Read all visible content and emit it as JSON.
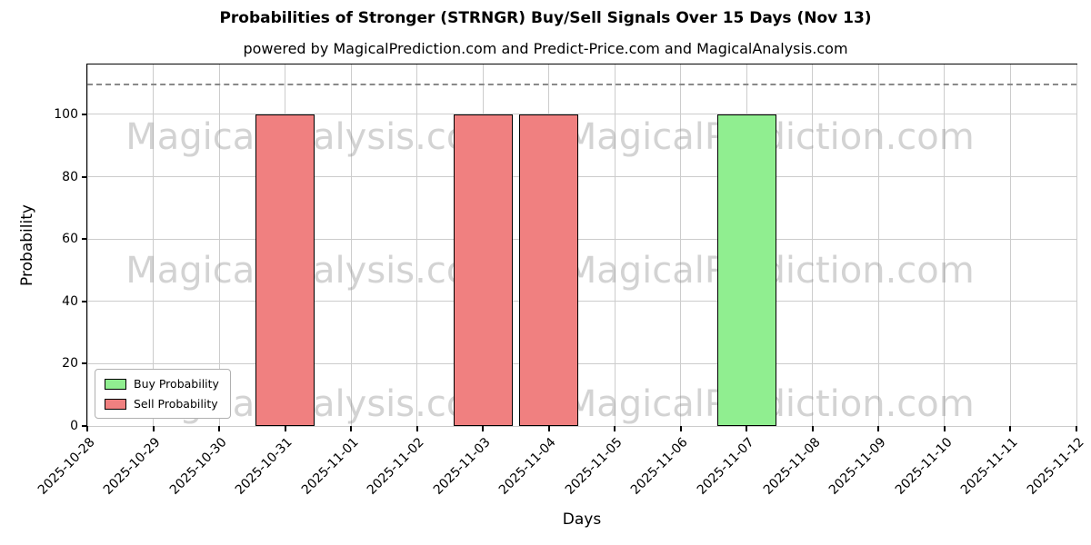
{
  "chart_data": {
    "type": "bar",
    "title": "Probabilities of Stronger (STRNGR) Buy/Sell Signals Over 15 Days (Nov 13)",
    "subtitle": "powered by MagicalPrediction.com and Predict-Price.com and MagicalAnalysis.com",
    "xlabel": "Days",
    "ylabel": "Probability",
    "categories": [
      "2025-10-28",
      "2025-10-29",
      "2025-10-30",
      "2025-10-31",
      "2025-11-01",
      "2025-11-02",
      "2025-11-03",
      "2025-11-04",
      "2025-11-05",
      "2025-11-06",
      "2025-11-07",
      "2025-11-08",
      "2025-11-09",
      "2025-11-10",
      "2025-11-11",
      "2025-11-12"
    ],
    "series": [
      {
        "name": "Buy Probability",
        "color": "#90ee90",
        "values": [
          0,
          0,
          0,
          0,
          0,
          0,
          0,
          0,
          0,
          0,
          100,
          0,
          0,
          0,
          0,
          0
        ]
      },
      {
        "name": "Sell Probability",
        "color": "#f08080",
        "values": [
          0,
          0,
          0,
          100,
          0,
          0,
          100,
          100,
          0,
          0,
          0,
          0,
          0,
          0,
          0,
          0
        ]
      }
    ],
    "yticks": [
      0,
      20,
      40,
      60,
      80,
      100
    ],
    "ylim": [
      0,
      116
    ],
    "threshold_line": 110,
    "grid": true,
    "legend_position": "lower left",
    "bar_edge_color": "#000000",
    "grid_color": "#cccccc",
    "threshold_color": "#8a8a8a",
    "watermarks": [
      "MagicalAnalysis.com",
      "MagicalPrediction.com"
    ]
  }
}
